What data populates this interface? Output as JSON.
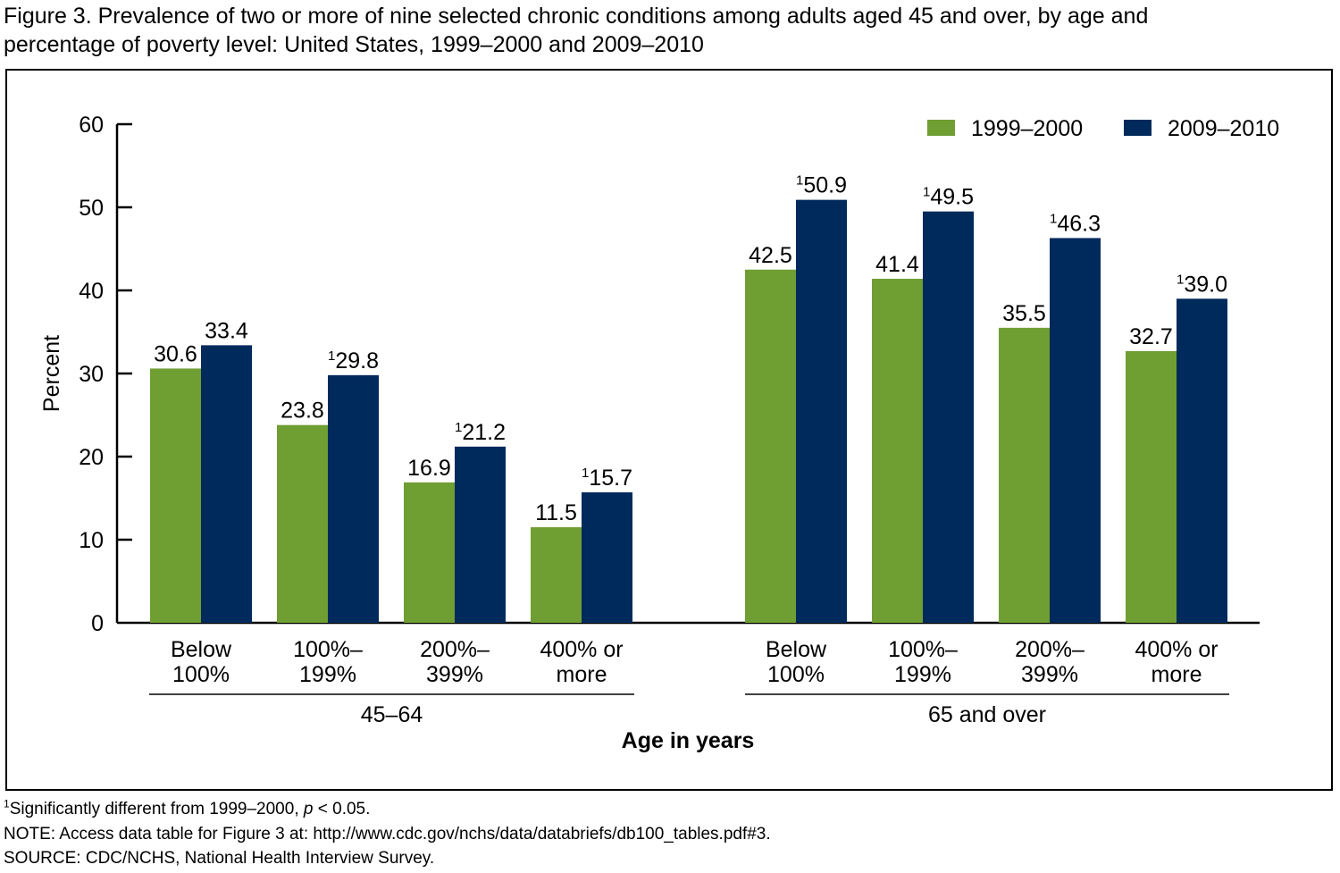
{
  "figure": {
    "title_line1": "Figure 3. Prevalence of two or more of nine selected chronic conditions among adults aged 45 and over, by age and",
    "title_line2": "percentage of poverty level: United States, 1999–2000 and 2009–2010"
  },
  "footnotes": {
    "sig_marker": "1",
    "sig_text_before": "Significantly different from 1999–2000, ",
    "sig_italic": "p",
    "sig_text_after": " < 0.05.",
    "note": "NOTE: Access data table for Figure 3 at: http://www.cdc.gov/nchs/data/databriefs/db100_tables.pdf#3.",
    "source": "SOURCE: CDC/NCHS, National Health Interview Survey."
  },
  "colors": {
    "series_1999": "#6f9e33",
    "series_2009": "#002a5c",
    "axis": "#000000"
  },
  "chart_data": {
    "type": "bar",
    "ylabel": "Percent",
    "xlabel": "Age in years",
    "ylim": [
      0,
      60
    ],
    "yticks": [
      0,
      10,
      20,
      30,
      40,
      50,
      60
    ],
    "legend_position": "top-right",
    "significance_marker": "1",
    "series": [
      {
        "name": "1999–2000",
        "color": "#6f9e33",
        "values": [
          30.6,
          23.8,
          16.9,
          11.5,
          42.5,
          41.4,
          35.5,
          32.7
        ],
        "significant": [
          false,
          false,
          false,
          false,
          false,
          false,
          false,
          false
        ]
      },
      {
        "name": "2009–2010",
        "color": "#002a5c",
        "values": [
          33.4,
          29.8,
          21.2,
          15.7,
          50.9,
          49.5,
          46.3,
          39.0
        ],
        "significant": [
          false,
          true,
          true,
          true,
          true,
          true,
          true,
          true
        ]
      }
    ],
    "categories": [
      {
        "label": [
          "Below",
          "100%"
        ],
        "group": 0
      },
      {
        "label": [
          "100%–",
          "199%"
        ],
        "group": 0
      },
      {
        "label": [
          "200%–",
          "399%"
        ],
        "group": 0
      },
      {
        "label": [
          "400% or",
          "more"
        ],
        "group": 0
      },
      {
        "label": [
          "Below",
          "100%"
        ],
        "group": 1
      },
      {
        "label": [
          "100%–",
          "199%"
        ],
        "group": 1
      },
      {
        "label": [
          "200%–",
          "399%"
        ],
        "group": 1
      },
      {
        "label": [
          "400% or",
          "more"
        ],
        "group": 1
      }
    ],
    "groups": [
      "45–64",
      "65 and over"
    ]
  }
}
